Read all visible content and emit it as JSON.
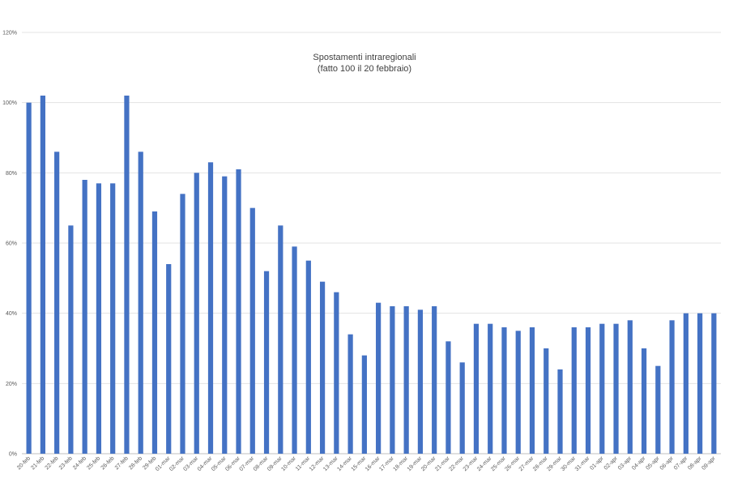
{
  "chart_data": {
    "type": "bar",
    "title": "Spostamenti intraregionali",
    "subtitle": "(fatto 100 il 20 febbraio)",
    "xlabel": "",
    "ylabel": "",
    "ylim": [
      0,
      1.2
    ],
    "y_ticks": [
      "0%",
      "20%",
      "40%",
      "60%",
      "80%",
      "100%",
      "120%"
    ],
    "y_tick_values": [
      0,
      0.2,
      0.4,
      0.6,
      0.8,
      1.0,
      1.2
    ],
    "grid": true,
    "legend": "none",
    "bar_color": "#4472c4",
    "categories": [
      "20-feb",
      "21-feb",
      "22-feb",
      "23-feb",
      "24-feb",
      "25-feb",
      "26-feb",
      "27-feb",
      "28-feb",
      "29-feb",
      "01-mar",
      "02-mar",
      "03-mar",
      "04-mar",
      "05-mar",
      "06-mar",
      "07-mar",
      "08-mar",
      "09-mar",
      "10-mar",
      "11-mar",
      "12-mar",
      "13-mar",
      "14-mar",
      "15-mar",
      "16-mar",
      "17-mar",
      "18-mar",
      "19-mar",
      "20-mar",
      "21-mar",
      "22-mar",
      "23-mar",
      "24-mar",
      "25-mar",
      "26-mar",
      "27-mar",
      "28-mar",
      "29-mar",
      "30-mar",
      "31-mar",
      "01-apr",
      "02-apr",
      "03-apr",
      "04-apr",
      "05-apr",
      "06-apr",
      "07-apr",
      "08-apr",
      "09-apr"
    ],
    "values": [
      1.0,
      1.02,
      0.86,
      0.65,
      0.78,
      0.77,
      0.77,
      1.02,
      0.86,
      0.69,
      0.54,
      0.74,
      0.8,
      0.83,
      0.79,
      0.81,
      0.7,
      0.52,
      0.65,
      0.59,
      0.55,
      0.49,
      0.46,
      0.34,
      0.28,
      0.43,
      0.42,
      0.42,
      0.41,
      0.42,
      0.32,
      0.26,
      0.37,
      0.37,
      0.36,
      0.35,
      0.36,
      0.3,
      0.24,
      0.36,
      0.36,
      0.37,
      0.37,
      0.38,
      0.3,
      0.25,
      0.38,
      0.4,
      0.4,
      0.4
    ]
  }
}
